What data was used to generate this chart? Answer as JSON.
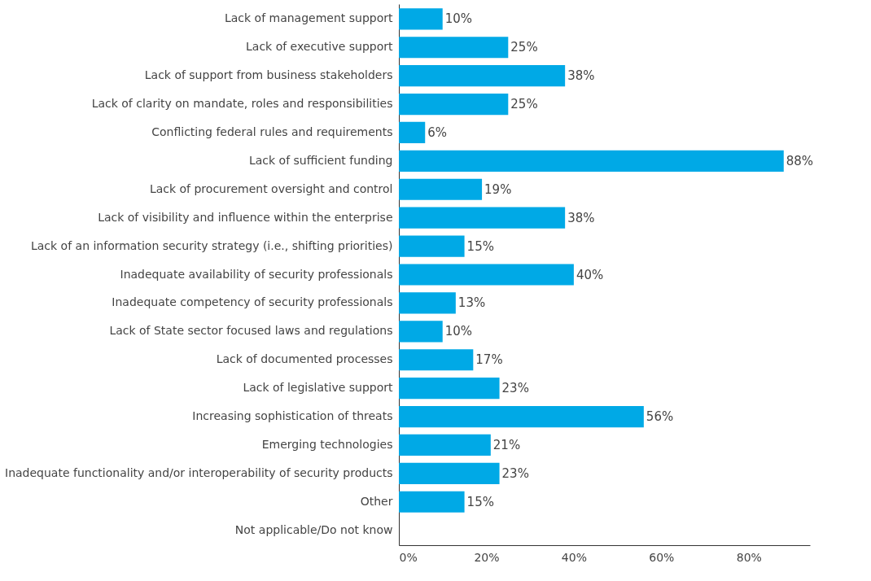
{
  "chart_data": {
    "type": "bar",
    "orientation": "horizontal",
    "categories": [
      "Lack of management support",
      "Lack of executive support",
      "Lack of support from business stakeholders",
      "Lack of clarity on mandate, roles and responsibilities",
      "Conflicting federal rules and requirements",
      "Lack of sufficient funding",
      "Lack of procurement oversight and control",
      "Lack of visibility and influence within the enterprise",
      "Lack of an information security strategy (i.e., shifting priorities)",
      "Inadequate availability of security professionals",
      "Inadequate competency of security professionals",
      "Lack of State sector focused laws and regulations",
      "Lack of documented processes",
      "Lack of legislative support",
      "Increasing sophistication of threats",
      "Emerging technologies",
      "Inadequate functionality and/or interoperability of security products",
      "Other",
      "Not applicable/Do not know"
    ],
    "values": [
      10,
      25,
      38,
      25,
      6,
      88,
      19,
      38,
      15,
      40,
      13,
      10,
      17,
      23,
      56,
      21,
      23,
      15,
      null
    ],
    "value_labels": [
      "10%",
      "25%",
      "38%",
      "25%",
      "6%",
      "88%",
      "19%",
      "38%",
      "15%",
      "40%",
      "13%",
      "10%",
      "17%",
      "23%",
      "56%",
      "21%",
      "23%",
      "15%",
      null
    ],
    "color": "#00a9e6",
    "xlim": [
      0,
      94
    ],
    "xticks": [
      {
        "value": 0,
        "label": "0%"
      },
      {
        "value": 20,
        "label": "20%"
      },
      {
        "value": 40,
        "label": "40%"
      },
      {
        "value": 60,
        "label": "60%"
      },
      {
        "value": 80,
        "label": "80%"
      }
    ],
    "grid": false
  }
}
